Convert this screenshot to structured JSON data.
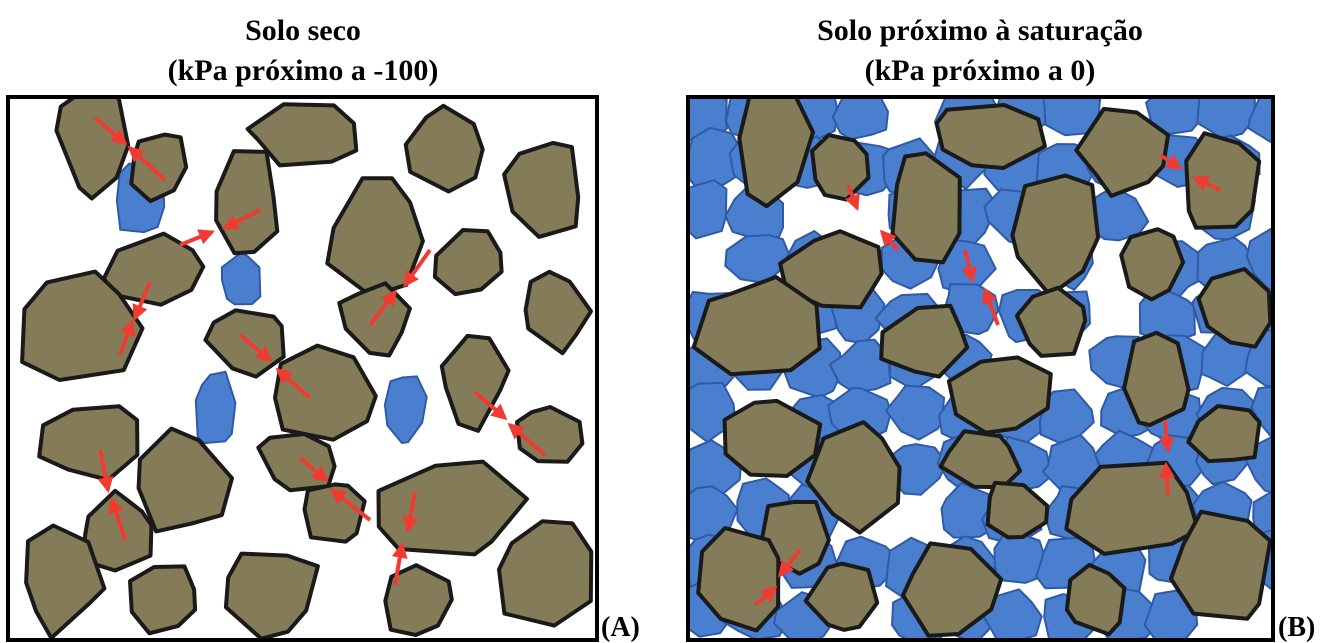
{
  "panels": [
    {
      "title": [
        "Solo seco",
        "(kPa próximo a -100)"
      ],
      "label": "(A)"
    },
    {
      "title": [
        "Solo próximo à saturação",
        "(kPa próximo a 0)"
      ],
      "label": "(B)"
    }
  ]
}
